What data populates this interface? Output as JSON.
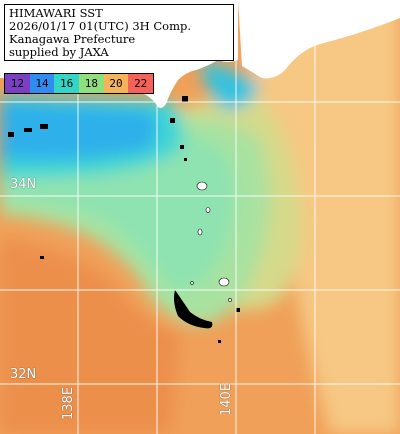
{
  "title": {
    "lines": [
      "HIMAWARI SST",
      "2026/01/17 01(UTC) 3H Comp.",
      "Kanagawa Prefecture",
      "supplied by JAXA"
    ]
  },
  "colorbar": {
    "segments": [
      {
        "label": "12",
        "color": "#7a3fc2"
      },
      {
        "label": "14",
        "color": "#2f8cf0"
      },
      {
        "label": "16",
        "color": "#33d6c6"
      },
      {
        "label": "18",
        "color": "#8fe07a"
      },
      {
        "label": "20",
        "color": "#f5b45a"
      },
      {
        "label": "22",
        "color": "#f4625a"
      }
    ]
  },
  "grid": {
    "lat_labels": [
      "34N",
      "32N"
    ],
    "lon_labels": [
      "138E",
      "140E"
    ]
  }
}
